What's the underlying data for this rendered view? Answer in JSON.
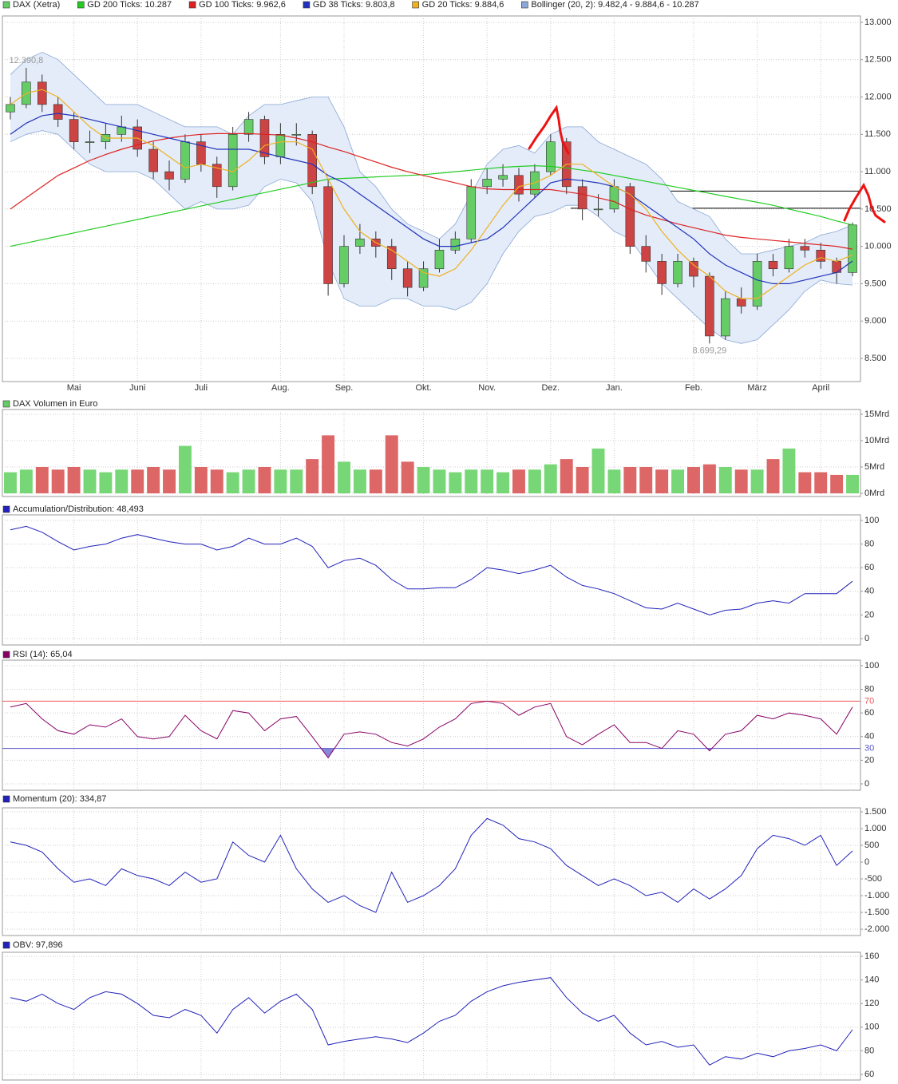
{
  "chart_data": [
    {
      "type": "candlestick",
      "name": "DAX (Xetra)",
      "up_color": "#66cc66",
      "down_color": "#cc4444",
      "grid": true,
      "categories": [
        null,
        null,
        null,
        null,
        "Mai",
        null,
        null,
        null,
        "Juni",
        null,
        null,
        null,
        "Juli",
        null,
        null,
        null,
        null,
        "Aug.",
        null,
        null,
        null,
        "Sep.",
        null,
        null,
        null,
        null,
        "Okt.",
        null,
        null,
        null,
        "Nov.",
        null,
        null,
        null,
        "Dez.",
        null,
        null,
        null,
        "Jan.",
        null,
        null,
        null,
        null,
        "Feb.",
        null,
        null,
        null,
        "März",
        null,
        null,
        null,
        "April",
        null,
        null
      ],
      "open": [
        11800,
        11900,
        12200,
        11900,
        11700,
        11400,
        11400,
        11500,
        11600,
        11300,
        11000,
        10900,
        11400,
        11100,
        10800,
        11500,
        11700,
        11200,
        11500,
        11500,
        10800,
        9500,
        10000,
        10100,
        10000,
        9700,
        9450,
        9700,
        9950,
        10100,
        10800,
        10900,
        10950,
        10700,
        11000,
        11400,
        10800,
        10500,
        10500,
        10800,
        10000,
        9800,
        9500,
        9800,
        9600,
        8800,
        9300,
        9200,
        9800,
        9700,
        10000,
        9950,
        9800,
        9650
      ],
      "high": [
        12000,
        12390.8,
        12300,
        12000,
        11800,
        11550,
        11650,
        11750,
        11700,
        11400,
        11150,
        11500,
        11500,
        11200,
        11600,
        11800,
        11750,
        11650,
        11650,
        11550,
        10900,
        10150,
        10300,
        10200,
        10100,
        9800,
        9800,
        10100,
        10200,
        10900,
        11050,
        11100,
        11050,
        11100,
        11500,
        11450,
        10900,
        10700,
        10900,
        10850,
        10150,
        9900,
        9900,
        9850,
        9650,
        9400,
        9450,
        9900,
        9900,
        10100,
        10100,
        10050,
        9850,
        10320
      ],
      "low": [
        11700,
        11850,
        11800,
        11600,
        11300,
        11250,
        11300,
        11400,
        11200,
        10900,
        10750,
        10850,
        11000,
        10650,
        10750,
        11400,
        11100,
        11100,
        11350,
        10700,
        9340,
        9450,
        9900,
        9850,
        9550,
        9330,
        9400,
        9650,
        9900,
        10050,
        10700,
        10800,
        10600,
        10650,
        10950,
        10700,
        10350,
        10400,
        10450,
        9900,
        9650,
        9350,
        9450,
        9450,
        8699.29,
        8750,
        9100,
        9150,
        9600,
        9650,
        9850,
        9700,
        9500,
        9600
      ],
      "close": [
        11900,
        12200,
        11900,
        11700,
        11400,
        11400,
        11500,
        11600,
        11300,
        11000,
        10900,
        11400,
        11100,
        10800,
        11500,
        11700,
        11200,
        11500,
        11500,
        10800,
        9500,
        10000,
        10100,
        10000,
        9700,
        9450,
        9700,
        9950,
        10100,
        10800,
        10900,
        10950,
        10700,
        11000,
        11400,
        10800,
        10500,
        10500,
        10800,
        10000,
        9800,
        9500,
        9800,
        9600,
        8800,
        9300,
        9200,
        9800,
        9700,
        10000,
        9950,
        9800,
        9650,
        10287
      ],
      "bands": {
        "name": "Bollinger (20, 2): 9.482,4 - 9.884,6 - 10.287",
        "color": "#8aa7d6",
        "fill": "#e3ecf8",
        "upper": [
          12300,
          12500,
          12600,
          12500,
          12300,
          12100,
          11900,
          11900,
          11900,
          11800,
          11700,
          11600,
          11600,
          11600,
          11500,
          11750,
          11900,
          11900,
          11950,
          12000,
          12000,
          11600,
          11000,
          10800,
          10500,
          10300,
          10200,
          10100,
          10300,
          10700,
          11100,
          11300,
          11350,
          11250,
          11500,
          11600,
          11600,
          11400,
          11300,
          11200,
          11100,
          10900,
          10600,
          10500,
          10400,
          10100,
          9900,
          9900,
          9950,
          10000,
          10050,
          10150,
          10200,
          10287
        ],
        "lower": [
          11400,
          11500,
          11550,
          11500,
          11300,
          11100,
          11000,
          11000,
          11000,
          10900,
          10700,
          10500,
          10600,
          10500,
          10500,
          10550,
          10800,
          10900,
          10850,
          10600,
          9800,
          9300,
          9200,
          9200,
          9300,
          9300,
          9200,
          9200,
          9150,
          9250,
          9500,
          9900,
          10200,
          10400,
          10450,
          10550,
          10550,
          10400,
          10200,
          10100,
          9800,
          9500,
          9300,
          9100,
          8900,
          8750,
          8700,
          8750,
          8950,
          9150,
          9400,
          9550,
          9500,
          9482
        ]
      },
      "series": [
        {
          "name": "GD 200 Ticks: 10.287",
          "color": "#22cc22",
          "values": [
            10000,
            10045,
            10090,
            10135,
            10180,
            10225,
            10270,
            10315,
            10360,
            10405,
            10450,
            10495,
            10540,
            10585,
            10630,
            10675,
            10720,
            10765,
            10810,
            10855,
            10900,
            10910,
            10920,
            10930,
            10940,
            10950,
            10960,
            10980,
            11000,
            11020,
            11040,
            11060,
            11070,
            11080,
            11070,
            11050,
            11020,
            10990,
            10950,
            10910,
            10870,
            10830,
            10790,
            10750,
            10710,
            10670,
            10630,
            10590,
            10550,
            10500,
            10450,
            10400,
            10340,
            10287
          ]
        },
        {
          "name": "GD 100 Ticks: 9.962,6",
          "color": "#dd2222",
          "values": [
            10500,
            10650,
            10800,
            10950,
            11050,
            11150,
            11230,
            11300,
            11360,
            11410,
            11450,
            11480,
            11500,
            11510,
            11510,
            11510,
            11500,
            11490,
            11450,
            11400,
            11330,
            11270,
            11200,
            11130,
            11060,
            11000,
            10950,
            10900,
            10850,
            10800,
            10770,
            10760,
            10760,
            10760,
            10760,
            10730,
            10700,
            10650,
            10600,
            10500,
            10420,
            10360,
            10300,
            10250,
            10200,
            10150,
            10120,
            10100,
            10080,
            10060,
            10040,
            10020,
            10000,
            9963
          ]
        },
        {
          "name": "GD 38 Ticks: 9.803,8",
          "color": "#2233bb",
          "values": [
            11500,
            11650,
            11750,
            11780,
            11750,
            11700,
            11650,
            11600,
            11550,
            11500,
            11450,
            11400,
            11350,
            11300,
            11300,
            11300,
            11250,
            11200,
            11150,
            11100,
            10950,
            10850,
            10700,
            10550,
            10400,
            10250,
            10100,
            10000,
            10000,
            10050,
            10100,
            10250,
            10450,
            10650,
            10850,
            10900,
            10880,
            10850,
            10800,
            10700,
            10550,
            10400,
            10250,
            10100,
            9900,
            9750,
            9650,
            9550,
            9500,
            9500,
            9550,
            9600,
            9650,
            9804
          ]
        },
        {
          "name": "GD 20 Ticks: 9.884,6",
          "color": "#f0b020",
          "values": [
            11900,
            12050,
            12100,
            12000,
            11800,
            11600,
            11450,
            11450,
            11450,
            11350,
            11200,
            11050,
            11100,
            11050,
            11000,
            11150,
            11350,
            11400,
            11400,
            11300,
            10900,
            10500,
            10200,
            10050,
            9950,
            9800,
            9650,
            9600,
            9700,
            9950,
            10250,
            10550,
            10800,
            10850,
            10950,
            11100,
            11100,
            10950,
            10800,
            10700,
            10500,
            10200,
            9950,
            9750,
            9600,
            9400,
            9300,
            9300,
            9450,
            9600,
            9750,
            9850,
            9800,
            9885
          ]
        }
      ],
      "annotations": [
        {
          "label": "12.390,8",
          "value": 12390.8
        },
        {
          "label": "8.699,29",
          "value": 8699.29
        }
      ],
      "reference_lines": [
        {
          "value": 10740,
          "color": "#000000"
        },
        {
          "value": 10510,
          "color": "#000000"
        }
      ],
      "ylim": [
        8190,
        13085
      ],
      "yticks": [
        {
          "value": 8500,
          "label": "8.500"
        },
        {
          "value": 9000,
          "label": "9.000"
        },
        {
          "value": 9500,
          "label": "9.500"
        },
        {
          "value": 10000,
          "label": "10.000"
        },
        {
          "value": 10500,
          "label": "10.500"
        },
        {
          "value": 11000,
          "label": "11.000"
        },
        {
          "value": 11500,
          "label": "11.500"
        },
        {
          "value": 12000,
          "label": "12.000"
        },
        {
          "value": 12500,
          "label": "12.500"
        },
        {
          "value": 13000,
          "label": "13.000"
        }
      ]
    },
    {
      "type": "bar",
      "grid": true,
      "up_color": "#77d777",
      "down_color": "#dd6666",
      "series": [
        {
          "name": "DAX Volumen in Euro",
          "color": "#66cc66",
          "values": [
            4,
            4.5,
            5,
            4.5,
            5,
            4.5,
            4,
            4.5,
            4.5,
            5,
            4.5,
            9,
            5,
            4.5,
            4,
            4.5,
            5,
            4.5,
            4.5,
            6.5,
            11,
            6,
            4.5,
            4.5,
            11,
            6,
            5,
            4.5,
            4,
            4.5,
            4.5,
            4,
            4.5,
            4.5,
            5.5,
            6.5,
            5,
            8.5,
            4.5,
            5,
            5,
            4.5,
            4.5,
            5,
            5.5,
            5,
            4.5,
            4.5,
            6.5,
            8.5,
            4,
            4,
            3.5,
            3.5
          ]
        }
      ],
      "ylim": [
        -0.6,
        15.9
      ],
      "yticks": [
        {
          "value": 0,
          "label": "0Mrd"
        },
        {
          "value": 5,
          "label": "5Mrd"
        },
        {
          "value": 10,
          "label": "10Mrd"
        },
        {
          "value": 15,
          "label": "15Mrd"
        }
      ]
    },
    {
      "type": "line",
      "grid": true,
      "series": [
        {
          "name": "Accumulation/Distribution: 48,493",
          "color": "#2222bb",
          "values": [
            92,
            95,
            90,
            82,
            75,
            78,
            80,
            85,
            88,
            85,
            82,
            80,
            80,
            75,
            78,
            85,
            80,
            80,
            85,
            78,
            60,
            66,
            68,
            62,
            50,
            42,
            42,
            43,
            43,
            50,
            60,
            58,
            55,
            58,
            62,
            52,
            45,
            42,
            38,
            32,
            26,
            25,
            30,
            25,
            20,
            24,
            25,
            30,
            32,
            30,
            38,
            38,
            38,
            48.493
          ]
        }
      ],
      "ylim": [
        -5.4,
        104.7
      ],
      "yticks": [
        0,
        20,
        40,
        60,
        80,
        100
      ]
    },
    {
      "type": "line",
      "grid": true,
      "series": [
        {
          "name": "RSI (14): 65,04",
          "color": "#880066",
          "values": [
            65,
            68,
            55,
            45,
            42,
            50,
            48,
            55,
            40,
            38,
            40,
            58,
            45,
            38,
            62,
            60,
            45,
            55,
            57,
            40,
            22,
            42,
            44,
            42,
            35,
            32,
            38,
            48,
            55,
            68,
            70,
            68,
            58,
            65,
            68,
            40,
            33,
            42,
            50,
            35,
            35,
            30,
            45,
            42,
            28,
            42,
            45,
            58,
            55,
            60,
            58,
            55,
            42,
            65.04
          ]
        }
      ],
      "reference_lines": [
        {
          "value": 70,
          "color": "#ee5555"
        },
        {
          "value": 30,
          "color": "#5555cc",
          "shade": true
        }
      ],
      "ylim": [
        -5.4,
        104.7
      ],
      "yticks": [
        0,
        20,
        40,
        60,
        80,
        100
      ]
    },
    {
      "type": "line",
      "grid": true,
      "series": [
        {
          "name": "Momentum (20): 334,87",
          "color": "#2222bb",
          "values": [
            600,
            500,
            300,
            -200,
            -600,
            -500,
            -700,
            -200,
            -400,
            -500,
            -700,
            -300,
            -600,
            -500,
            600,
            200,
            0,
            800,
            -200,
            -800,
            -1200,
            -1000,
            -1300,
            -1500,
            -300,
            -1200,
            -1000,
            -700,
            -200,
            800,
            1300,
            1100,
            700,
            600,
            400,
            -100,
            -400,
            -700,
            -500,
            -700,
            -1000,
            -900,
            -1200,
            -800,
            -1100,
            -800,
            -400,
            400,
            800,
            700,
            500,
            800,
            -100,
            334.87
          ]
        }
      ],
      "ylim": [
        -2190,
        1620
      ],
      "yticks": [
        {
          "value": -2000,
          "label": "-2.000"
        },
        {
          "value": -1500,
          "label": "-1.500"
        },
        {
          "value": -1000,
          "label": "-1.000"
        },
        -500,
        0,
        500,
        {
          "value": 1000,
          "label": "1.000"
        },
        {
          "value": 1500,
          "label": "1.500"
        }
      ]
    },
    {
      "type": "line",
      "grid": true,
      "series": [
        {
          "name": "OBV: 97,896",
          "color": "#2222bb",
          "values": [
            125,
            122,
            128,
            120,
            115,
            125,
            130,
            128,
            120,
            110,
            108,
            115,
            110,
            95,
            115,
            125,
            112,
            122,
            128,
            115,
            85,
            88,
            90,
            92,
            90,
            87,
            95,
            105,
            110,
            122,
            130,
            135,
            138,
            140,
            142,
            125,
            112,
            105,
            110,
            95,
            85,
            88,
            83,
            85,
            68,
            75,
            73,
            78,
            75,
            80,
            82,
            85,
            80,
            97.896
          ]
        }
      ],
      "ylim": [
        55.3,
        163.4
      ],
      "yticks": [
        60,
        80,
        100,
        120,
        140,
        160
      ]
    }
  ]
}
